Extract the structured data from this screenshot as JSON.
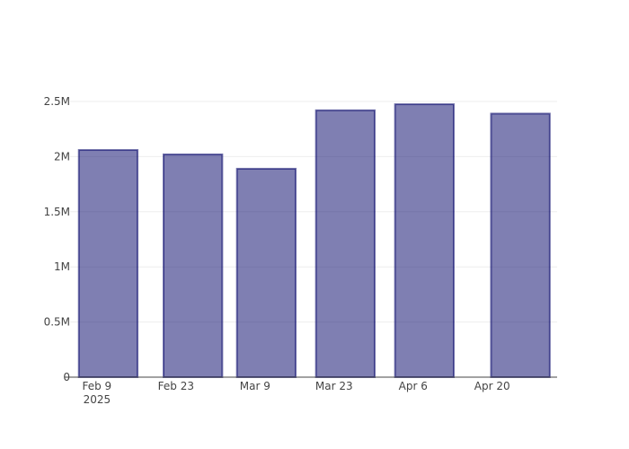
{
  "chart_data": {
    "type": "bar",
    "x": [
      "2025-02-11",
      "2025-02-26",
      "2025-03-11",
      "2025-03-25",
      "2025-04-08",
      "2025-04-25"
    ],
    "values": [
      2060000,
      2020000,
      1890000,
      2420000,
      2475000,
      2390000
    ],
    "color": "#000066",
    "xlim": [
      "2025-02-04T06:00",
      "2025-05-01T12:00"
    ],
    "xticks": [
      {
        "value": "2025-02-09",
        "label": "Feb 9\n2025"
      },
      {
        "value": "2025-02-23",
        "label": "Feb 23"
      },
      {
        "value": "2025-03-09",
        "label": "Mar 9"
      },
      {
        "value": "2025-03-23",
        "label": "Mar 23"
      },
      {
        "value": "2025-04-06",
        "label": "Apr 6"
      },
      {
        "value": "2025-04-20",
        "label": "Apr 20"
      }
    ],
    "ylim": [
      0,
      2606000
    ],
    "yticks": [
      0,
      {
        "value": 500000,
        "label": "0.5M"
      },
      {
        "value": 1000000,
        "label": "1M"
      },
      {
        "value": 1500000,
        "label": "1.5M"
      },
      {
        "value": 2000000,
        "label": "2M"
      },
      {
        "value": 2500000,
        "label": "2.5M"
      }
    ],
    "grid": true
  }
}
